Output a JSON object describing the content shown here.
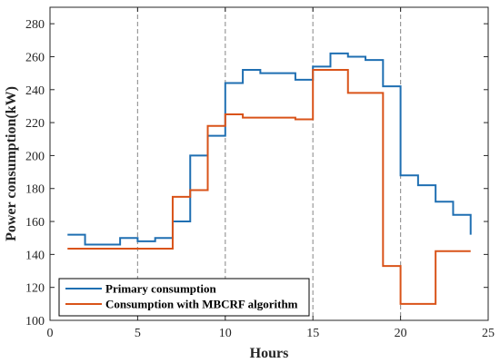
{
  "chart_data": {
    "type": "line",
    "title": "",
    "xlabel": "Hours",
    "ylabel": "Power consumption(kW)",
    "xlim": [
      0,
      25
    ],
    "ylim": [
      100,
      290
    ],
    "x_ticks": [
      0,
      5,
      10,
      15,
      20,
      25
    ],
    "y_ticks": [
      100,
      120,
      140,
      160,
      180,
      200,
      220,
      240,
      260,
      280
    ],
    "vertical_dashed_lines": [
      5,
      10,
      15,
      20
    ],
    "step_style": "post",
    "legend": {
      "position": "bottom-left"
    },
    "series": [
      {
        "name": "Primary consumption",
        "color": "#1f6fb2",
        "x": [
          1,
          2,
          3,
          4,
          5,
          6,
          7,
          8,
          9,
          10,
          11,
          12,
          13,
          14,
          15,
          16,
          17,
          18,
          19,
          20,
          21,
          22,
          23,
          24
        ],
        "values": [
          152,
          146,
          146,
          150,
          148,
          150,
          160,
          200,
          212,
          244,
          252,
          250,
          250,
          246,
          254,
          262,
          260,
          258,
          242,
          188,
          182,
          172,
          164,
          152
        ]
      },
      {
        "name": "Consumption with MBCRF algorithm",
        "color": "#d95319",
        "x": [
          1,
          2,
          3,
          4,
          5,
          6,
          7,
          8,
          9,
          10,
          11,
          12,
          13,
          14,
          15,
          16,
          17,
          18,
          19,
          20,
          21,
          22,
          23,
          24
        ],
        "values": [
          143.5,
          143.5,
          143.5,
          143.5,
          143.5,
          143.5,
          175,
          179,
          218,
          225,
          223,
          223,
          223,
          222,
          252,
          252,
          238,
          238,
          133,
          110,
          110,
          142,
          142,
          142
        ]
      }
    ]
  }
}
